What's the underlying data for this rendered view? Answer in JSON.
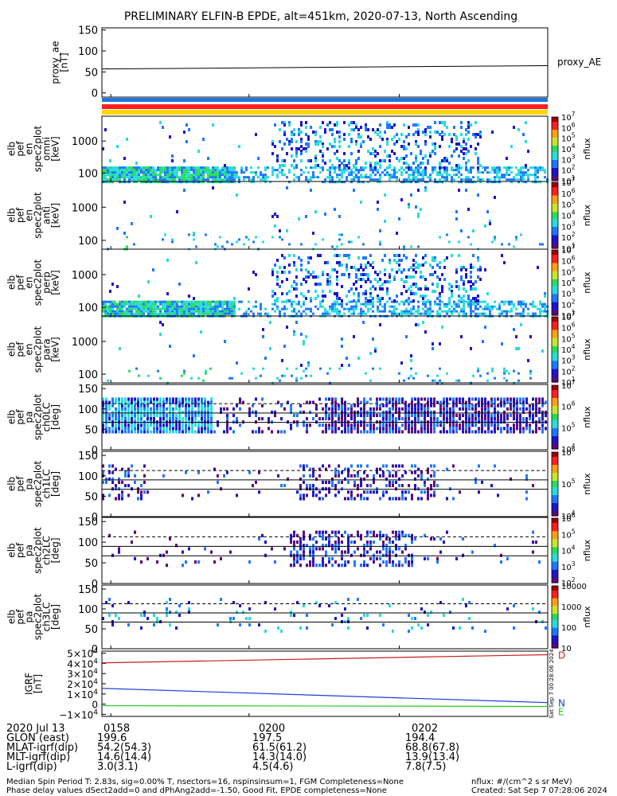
{
  "title": "PRELIMINARY ELFIN-B EPDE, alt=451km, 2020-07-13, North Ascending",
  "colors": {
    "bar_blue": "#1e78dc",
    "bar_red": "#ff1e1e",
    "bar_yellow": "#ffd700",
    "line_red": "#c81e1e",
    "line_blue": "#1e3cdc",
    "line_green": "#22cc22"
  },
  "colorscale_stops": [
    "#ffffff",
    "#5a0a78",
    "#1e14c8",
    "#1e78ff",
    "#28dcdc",
    "#28dc5a",
    "#c8e628",
    "#ffa014",
    "#ff1e1e",
    "#a00000"
  ],
  "chart_data": [
    {
      "type": "line",
      "panel": "proxy_ae",
      "ylabel_lines": [
        "proxy_ae",
        "[nT]"
      ],
      "legend": "proxy_AE",
      "yticks": [
        "150",
        "100",
        "50",
        "0"
      ],
      "ylim": [
        -10,
        155
      ],
      "series": [
        {
          "values": [
            57,
            65
          ]
        }
      ]
    },
    {
      "type": "heatmap",
      "panel": "spec-omni",
      "ylabel_lines": [
        "elb",
        "pef",
        "en",
        "spec2plot",
        "omni",
        "[keV]"
      ],
      "yticks": [
        "1000",
        "100"
      ],
      "log_y": true,
      "colorbar_ticks": [
        "10^7",
        "10^6",
        "10^5",
        "10^4",
        "10^3",
        "10^2",
        "10^1"
      ],
      "colorbar_label": "nflux",
      "low_energy_band": "dense",
      "high_energy_band": "mid-pass"
    },
    {
      "type": "heatmap",
      "panel": "spec-anti",
      "ylabel_lines": [
        "elb",
        "pef",
        "en",
        "spec2plot",
        "anti",
        "[keV]"
      ],
      "yticks": [
        "1000",
        "100"
      ],
      "log_y": true,
      "colorbar_ticks": [
        "10^7",
        "10^6",
        "10^5",
        "10^4",
        "10^3",
        "10^2",
        "10^1"
      ],
      "colorbar_label": "nflux"
    },
    {
      "type": "heatmap",
      "panel": "spec-perp",
      "ylabel_lines": [
        "elb",
        "pef",
        "en",
        "spec2plot",
        "perp",
        "[keV]"
      ],
      "yticks": [
        "1000",
        "100"
      ],
      "log_y": true,
      "colorbar_ticks": [
        "10^7",
        "10^6",
        "10^5",
        "10^4",
        "10^3",
        "10^2",
        "10^1"
      ],
      "colorbar_label": "nflux"
    },
    {
      "type": "heatmap",
      "panel": "spec-para",
      "ylabel_lines": [
        "elb",
        "pef",
        "en",
        "spec2plot",
        "para",
        "[keV]"
      ],
      "yticks": [
        "1000",
        "100"
      ],
      "log_y": true,
      "colorbar_ticks": [
        "10^7",
        "10^6",
        "10^5",
        "10^4",
        "10^3",
        "10^2",
        "10^1"
      ],
      "colorbar_label": "nflux"
    },
    {
      "type": "heatmap",
      "panel": "pa-ch0",
      "ylabel_lines": [
        "elb",
        "pef",
        "pa",
        "spec2plot",
        "ch0LC",
        "[deg]"
      ],
      "yticks": [
        "150",
        "100",
        "50",
        "0"
      ],
      "ylim": [
        0,
        160
      ],
      "reference_lines_deg": [
        113,
        90,
        67
      ],
      "colorbar_ticks": [
        "10^7",
        "10^6",
        "10^5",
        "10^4"
      ],
      "colorbar_label": "nflux"
    },
    {
      "type": "heatmap",
      "panel": "pa-ch1",
      "ylabel_lines": [
        "elb",
        "pef",
        "pa",
        "spec2plot",
        "ch1LC",
        "[deg]"
      ],
      "yticks": [
        "150",
        "100",
        "50",
        "0"
      ],
      "ylim": [
        0,
        160
      ],
      "reference_lines_deg": [
        113,
        90,
        67
      ],
      "colorbar_ticks": [
        "10^6",
        "10^5",
        "10^4"
      ],
      "colorbar_label": "nflux"
    },
    {
      "type": "heatmap",
      "panel": "pa-ch2",
      "ylabel_lines": [
        "elb",
        "pef",
        "pa",
        "spec2plot",
        "ch2LC",
        "[deg]"
      ],
      "yticks": [
        "150",
        "100",
        "50",
        "0"
      ],
      "ylim": [
        0,
        160
      ],
      "reference_lines_deg": [
        113,
        90,
        67
      ],
      "colorbar_ticks": [
        "10^6",
        "10^5",
        "10^4",
        "10^3",
        "10^2"
      ],
      "colorbar_label": "nflux"
    },
    {
      "type": "heatmap",
      "panel": "pa-ch3",
      "ylabel_lines": [
        "elb",
        "pef",
        "pa",
        "spec2plot",
        "ch3LC",
        "[deg]"
      ],
      "yticks": [
        "150",
        "100",
        "50",
        "0"
      ],
      "ylim": [
        0,
        160
      ],
      "reference_lines_deg": [
        113,
        90,
        67
      ],
      "colorbar_ticks": [
        "10000",
        "1000",
        "100",
        "10"
      ],
      "colorbar_label": "nflux"
    },
    {
      "type": "line",
      "panel": "igrf",
      "ylabel_lines": [
        "IGRF",
        "[nT]"
      ],
      "yticks": [
        "5×10^4",
        "4×10^4",
        "3×10^4",
        "2×10^4",
        "1×10^4",
        "0",
        "−1×10^4"
      ],
      "ylim": [
        -12000,
        52000
      ],
      "series": [
        {
          "name": "D",
          "values": [
            40500,
            48500
          ]
        },
        {
          "name": "N",
          "values": [
            15500,
            1500
          ]
        },
        {
          "name": "E",
          "values": [
            -1500,
            -2200
          ]
        }
      ],
      "side_stamp": "Sat Sep  7 00:28:06 2024"
    }
  ],
  "x_ticks": [
    "0158",
    "0200",
    "0202"
  ],
  "ephemeris": [
    {
      "label": "2020 Jul 13",
      "values": [
        "0158",
        "0200",
        "0202"
      ]
    },
    {
      "label": "GLON (east)",
      "values": [
        "199.6",
        "197.5",
        "194.4"
      ]
    },
    {
      "label": "MLAT-igrf(dip)",
      "values": [
        "54.2(54.3)",
        "61.5(61.2)",
        "68.8(67.8)"
      ]
    },
    {
      "label": "MLT-igrf(dip)",
      "values": [
        "14.6(14.4)",
        "14.3(14.0)",
        "13.9(13.4)"
      ]
    },
    {
      "label": "L-igrf(dip)",
      "values": [
        "3.0(3.1)",
        "4.5(4.6)",
        "7.8(7.5)"
      ]
    }
  ],
  "footer": {
    "line1": "Median Spin Period T: 2.83s, sig=0.00% T, nsectors=16, nspinsinsum=1, FGM Completeness=None",
    "line2": "Phase delay values dSect2add=0 and dPhAng2add=-1.50, Good Fit, EPDE completeness=None",
    "units": "nflux: #/(cm^2 s sr MeV)",
    "created": "Created: Sat Sep  7 07:28:06 2024"
  }
}
